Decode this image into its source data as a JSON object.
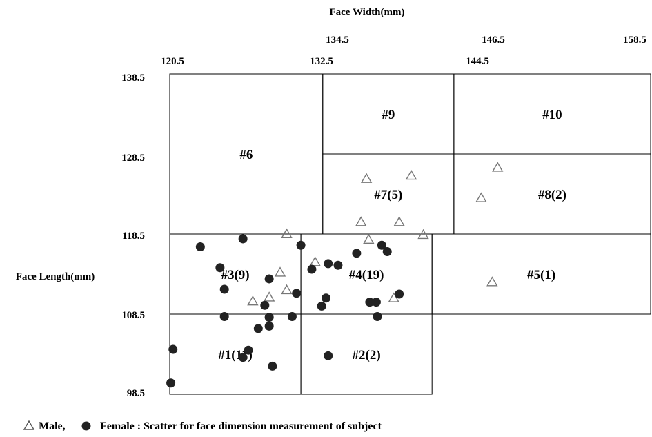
{
  "chart_data": {
    "type": "scatter",
    "xlabel": "Face Width(mm)",
    "ylabel": "Face Length(mm)",
    "x_ticks_lower": [
      "120.5",
      "132.5",
      "144.5"
    ],
    "x_ticks_upper": [
      "134.5",
      "146.5",
      "158.5"
    ],
    "y_ticks": [
      "138.5",
      "128.5",
      "118.5",
      "108.5",
      "98.5"
    ],
    "xlim": [
      120.5,
      164.5
    ],
    "ylim": [
      98.5,
      138.5
    ],
    "grid": false,
    "regions": [
      {
        "label": "#1(11)",
        "x": [
          120.5,
          132.5
        ],
        "y": [
          98.5,
          108.5
        ]
      },
      {
        "label": "#2(2)",
        "x": [
          132.5,
          144.5
        ],
        "y": [
          98.5,
          108.5
        ]
      },
      {
        "label": "#3(9)",
        "x": [
          120.5,
          132.5
        ],
        "y": [
          108.5,
          118.5
        ]
      },
      {
        "label": "#4(19)",
        "x": [
          132.5,
          144.5
        ],
        "y": [
          108.5,
          118.5
        ]
      },
      {
        "label": "#5(1)",
        "x": [
          144.5,
          164.5
        ],
        "y": [
          108.5,
          118.5
        ]
      },
      {
        "label": "#6",
        "x": [
          120.5,
          134.5
        ],
        "y": [
          118.5,
          138.5
        ]
      },
      {
        "label": "#7(5)",
        "x": [
          134.5,
          146.5
        ],
        "y": [
          118.5,
          128.5
        ]
      },
      {
        "label": "#8(2)",
        "x": [
          146.5,
          164.5
        ],
        "y": [
          118.5,
          128.5
        ]
      },
      {
        "label": "#9",
        "x": [
          134.5,
          146.5
        ],
        "y": [
          128.5,
          138.5
        ]
      },
      {
        "label": "#10",
        "x": [
          146.5,
          164.5
        ],
        "y": [
          128.5,
          138.5
        ]
      }
    ],
    "series": [
      {
        "name": "Male",
        "marker": "triangle-open",
        "color": "#777777",
        "points": [
          [
            130.6,
            113.7
          ],
          [
            128.1,
            110.1
          ],
          [
            129.6,
            110.6
          ],
          [
            131.2,
            118.5
          ],
          [
            133.8,
            115.0
          ],
          [
            131.2,
            111.5
          ],
          [
            138.0,
            120.0
          ],
          [
            138.7,
            117.8
          ],
          [
            141.5,
            120.0
          ],
          [
            138.5,
            125.4
          ],
          [
            142.6,
            125.8
          ],
          [
            143.7,
            118.4
          ],
          [
            149.0,
            123.0
          ],
          [
            150.5,
            126.8
          ],
          [
            150.0,
            112.5
          ],
          [
            141.0,
            110.5
          ]
        ]
      },
      {
        "name": "Female",
        "marker": "circle-filled",
        "color": "#222222",
        "points": [
          [
            120.6,
            99.9
          ],
          [
            120.8,
            104.1
          ],
          [
            123.3,
            116.9
          ],
          [
            125.1,
            114.3
          ],
          [
            125.5,
            111.6
          ],
          [
            125.5,
            108.2
          ],
          [
            127.2,
            117.9
          ],
          [
            127.2,
            103.1
          ],
          [
            127.7,
            104.0
          ],
          [
            128.6,
            106.7
          ],
          [
            129.2,
            109.6
          ],
          [
            129.6,
            112.9
          ],
          [
            129.6,
            108.1
          ],
          [
            129.6,
            107.0
          ],
          [
            129.9,
            102.0
          ],
          [
            131.7,
            108.2
          ],
          [
            132.1,
            111.1
          ],
          [
            132.5,
            117.1
          ],
          [
            133.5,
            114.1
          ],
          [
            134.4,
            109.5
          ],
          [
            134.8,
            110.5
          ],
          [
            135.0,
            103.3
          ],
          [
            135.0,
            114.8
          ],
          [
            135.9,
            114.6
          ],
          [
            137.6,
            116.1
          ],
          [
            139.9,
            117.1
          ],
          [
            138.8,
            110.0
          ],
          [
            139.4,
            110.0
          ],
          [
            139.5,
            108.2
          ],
          [
            140.4,
            116.3
          ],
          [
            141.5,
            111.0
          ]
        ]
      }
    ],
    "legend": {
      "position": "bottom-left"
    }
  },
  "legend_caption": {
    "male_label": "Male,",
    "female_label": "Female : Scatter for face dimension measurement of subject"
  }
}
